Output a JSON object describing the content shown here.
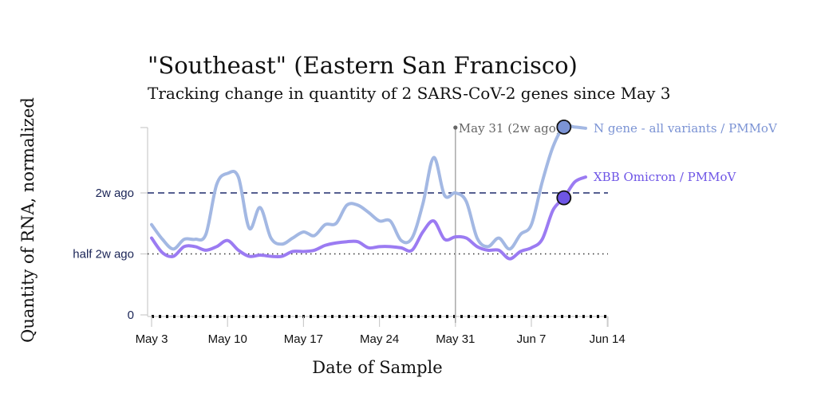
{
  "chart_data": {
    "type": "line",
    "title": "\"Southeast\" (Eastern San Francisco)",
    "subtitle": "Tracking change in quantity of 2 SARS-CoV-2 genes since May 3",
    "xlabel": "Date of Sample",
    "ylabel": "Quantity of RNA, normalized",
    "x_start": "May 3",
    "x_end": "Jun 14",
    "x_ticks": [
      {
        "label": "May 3",
        "day": 0
      },
      {
        "label": "May 10",
        "day": 7
      },
      {
        "label": "May 17",
        "day": 14
      },
      {
        "label": "May 24",
        "day": 21
      },
      {
        "label": "May 31",
        "day": 28
      },
      {
        "label": "Jun 7",
        "day": 35
      },
      {
        "label": "Jun 14",
        "day": 42
      }
    ],
    "y_ticks": [
      {
        "label": "0",
        "value": 0
      },
      {
        "label": "half 2w ago",
        "value": 0.5
      },
      {
        "label": "2w ago",
        "value": 1
      }
    ],
    "ylim": [
      0,
      1.55
    ],
    "grid": false,
    "reference_lines": [
      {
        "value": 1,
        "style": "dashed",
        "color": "#1f2a6b"
      },
      {
        "value": 0.5,
        "style": "dotted",
        "color": "#333333"
      }
    ],
    "annotation": {
      "label": "May 31 (2w ago)",
      "day": 28
    },
    "series": [
      {
        "name": "N gene - all variants / PMMoV",
        "color": "#a3b8e3",
        "marker_color": "#7b93d4",
        "marker_day": 38,
        "days": [
          0,
          1,
          2,
          3,
          4,
          5,
          6,
          7,
          8,
          9,
          10,
          11,
          12,
          13,
          14,
          15,
          16,
          17,
          18,
          19,
          20,
          21,
          22,
          23,
          24,
          25,
          26,
          27,
          28,
          29,
          30,
          31,
          32,
          33,
          34,
          35,
          36,
          37,
          38,
          39,
          40
        ],
        "values": [
          0.74,
          0.62,
          0.54,
          0.62,
          0.62,
          0.66,
          1.07,
          1.16,
          1.13,
          0.71,
          0.88,
          0.63,
          0.58,
          0.63,
          0.68,
          0.65,
          0.74,
          0.75,
          0.9,
          0.9,
          0.84,
          0.77,
          0.77,
          0.61,
          0.63,
          0.91,
          1.29,
          0.98,
          1.0,
          0.93,
          0.63,
          0.56,
          0.63,
          0.54,
          0.66,
          0.74,
          1.09,
          1.38,
          1.54,
          1.54,
          1.53
        ]
      },
      {
        "name": "XBB Omicron / PMMoV",
        "color": "#9b7bf2",
        "marker_color": "#6e55e6",
        "marker_day": 38,
        "days": [
          0,
          1,
          2,
          3,
          4,
          5,
          6,
          7,
          8,
          9,
          10,
          11,
          12,
          13,
          14,
          15,
          16,
          17,
          18,
          19,
          20,
          21,
          22,
          23,
          24,
          25,
          26,
          27,
          28,
          29,
          30,
          31,
          32,
          33,
          34,
          35,
          36,
          37,
          38,
          39,
          40
        ],
        "values": [
          0.63,
          0.51,
          0.48,
          0.56,
          0.56,
          0.53,
          0.56,
          0.61,
          0.53,
          0.48,
          0.49,
          0.48,
          0.48,
          0.52,
          0.52,
          0.53,
          0.57,
          0.59,
          0.6,
          0.6,
          0.55,
          0.56,
          0.56,
          0.55,
          0.53,
          0.68,
          0.77,
          0.62,
          0.64,
          0.63,
          0.56,
          0.53,
          0.53,
          0.46,
          0.52,
          0.55,
          0.62,
          0.86,
          0.96,
          1.09,
          1.13
        ]
      }
    ]
  }
}
